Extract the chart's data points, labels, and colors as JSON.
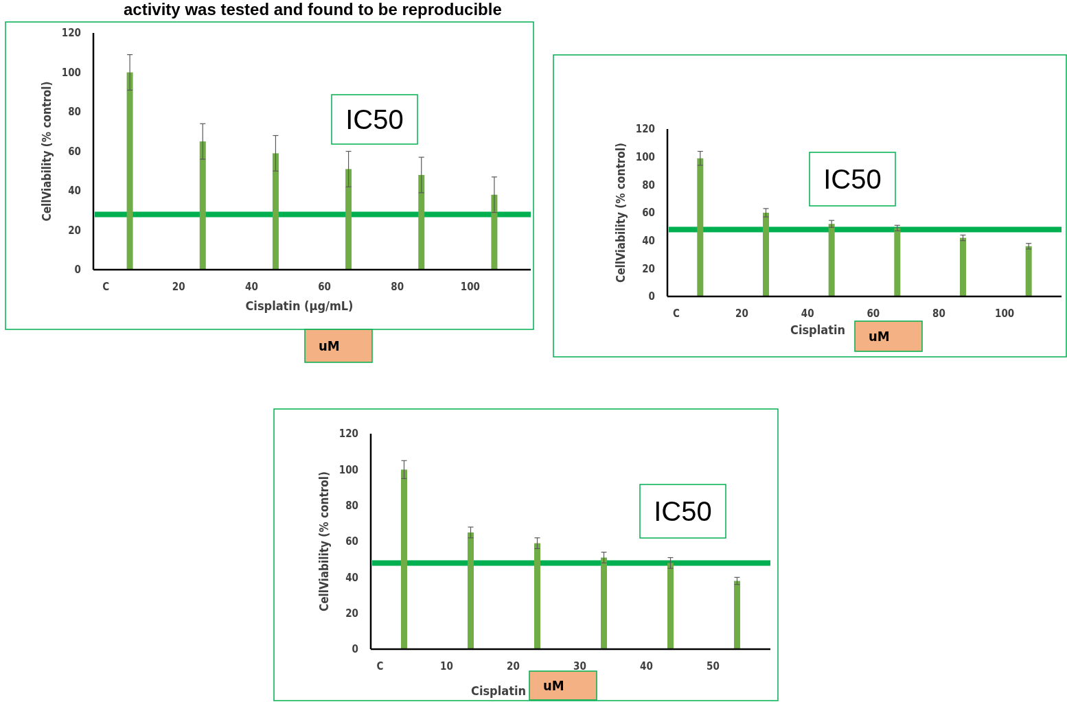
{
  "chart_data": [
    {
      "type": "bar",
      "title": "activity was tested and found to be reproducible",
      "xlabel": "Cisplatin (µg/mL)",
      "ylabel": "CellViability (% control)",
      "categories": [
        "C",
        "20",
        "40",
        "60",
        "80",
        "100"
      ],
      "values": [
        100,
        65,
        59,
        51,
        48,
        38
      ],
      "errors": [
        9,
        9,
        9,
        9,
        9,
        9
      ],
      "color": "#70ad47",
      "ylim": [
        0,
        120
      ],
      "yticks": [
        0,
        20,
        40,
        60,
        80,
        100,
        120
      ],
      "grid": false,
      "ref_lines": [
        {
          "axis": "y",
          "value": 28,
          "color": "#00b050"
        }
      ],
      "annotations": [
        "IC50",
        "uM"
      ]
    },
    {
      "type": "bar",
      "xlabel": "Cisplatin",
      "ylabel": "CellViability (% control)",
      "categories": [
        "C",
        "20",
        "40",
        "60",
        "80",
        "100"
      ],
      "values": [
        99,
        60,
        52,
        49,
        42,
        36
      ],
      "errors": [
        5,
        3,
        2.5,
        2,
        2,
        2
      ],
      "color": "#70ad47",
      "ylim": [
        0,
        120
      ],
      "yticks": [
        0,
        20,
        40,
        60,
        80,
        100,
        120
      ],
      "grid": false,
      "ref_lines": [
        {
          "axis": "y",
          "value": 48,
          "color": "#00b050"
        }
      ],
      "annotations": [
        "IC50",
        "uM"
      ]
    },
    {
      "type": "bar",
      "xlabel": "Cisplatin",
      "ylabel": "CellViability (% control)",
      "categories": [
        "C",
        "10",
        "20",
        "30",
        "40",
        "50"
      ],
      "values": [
        100,
        65,
        59,
        51,
        48,
        38
      ],
      "errors": [
        5,
        3,
        3,
        3,
        3,
        2
      ],
      "color": "#70ad47",
      "ylim": [
        0,
        120
      ],
      "yticks": [
        0,
        20,
        40,
        60,
        80,
        100,
        120
      ],
      "grid": false,
      "ref_lines": [
        {
          "axis": "y",
          "value": 48,
          "color": "#00b050"
        }
      ],
      "annotations": [
        "IC50",
        "uM"
      ]
    }
  ]
}
